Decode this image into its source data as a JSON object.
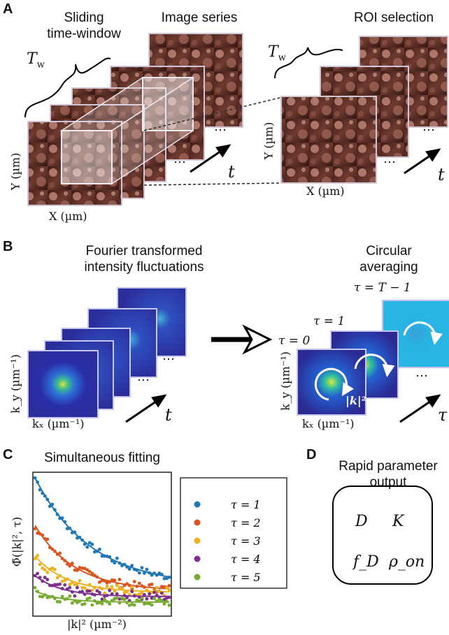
{
  "panels": {
    "A": {
      "letter": "A",
      "heading_left": [
        "Sliding",
        "time-window"
      ],
      "heading_mid": "Image series",
      "heading_right": "ROI selection",
      "window_symbol": "T",
      "window_subscript": "w",
      "time_symbol": "t",
      "ellipsis": "⋯",
      "x_label": "X (µm)",
      "y_label": "Y (µm)"
    },
    "B": {
      "letter": "B",
      "heading_left": [
        "Fourier transformed",
        "intensity fluctuations"
      ],
      "heading_right": [
        "Circular",
        "averaging"
      ],
      "tau_last": "τ = T − 1",
      "tau_one": "τ = 1",
      "tau_zero": "τ = 0",
      "k_label": "|k|²",
      "x_label": "kₓ (µm⁻¹)",
      "y_label": "k_y (µm⁻¹)",
      "time_symbol": "t",
      "tau_symbol": "τ",
      "ellipsis": "⋯"
    },
    "C": {
      "letter": "C",
      "heading": "Simultaneous fitting",
      "y_label": "Φ̃(|k|², τ)",
      "x_label": "|k|² (µm⁻²)"
    },
    "D": {
      "letter": "D",
      "heading": [
        "Rapid parameter",
        "output"
      ],
      "params": [
        "D",
        "K",
        "f_D",
        "ρ_on"
      ]
    }
  },
  "chart_data": {
    "type": "scatter",
    "title": "Simultaneous fitting",
    "xlabel": "|k|² (µm⁻²)",
    "ylabel": "Φ̃(|k|², τ)",
    "ticks": "none",
    "legend_position": "right (outside)",
    "fit_lines": true,
    "series": [
      {
        "name": "τ = 1",
        "color": "#1f77b4",
        "start": 0.97,
        "end": 0.19,
        "decay": 2.4,
        "noise": 0.025
      },
      {
        "name": "τ = 2",
        "color": "#d9541e",
        "start": 0.63,
        "end": 0.16,
        "decay": 3.4,
        "noise": 0.03
      },
      {
        "name": "τ = 3",
        "color": "#edb120",
        "start": 0.41,
        "end": 0.15,
        "decay": 4.2,
        "noise": 0.035
      },
      {
        "name": "τ = 4",
        "color": "#7e2f8e",
        "start": 0.27,
        "end": 0.12,
        "decay": 5.0,
        "noise": 0.035
      },
      {
        "name": "τ = 5",
        "color": "#77ac30",
        "start": 0.16,
        "end": 0.08,
        "decay": 5.5,
        "noise": 0.03
      }
    ]
  },
  "legend": [
    "τ = 1",
    "τ = 2",
    "τ = 3",
    "τ = 4",
    "τ = 5"
  ]
}
